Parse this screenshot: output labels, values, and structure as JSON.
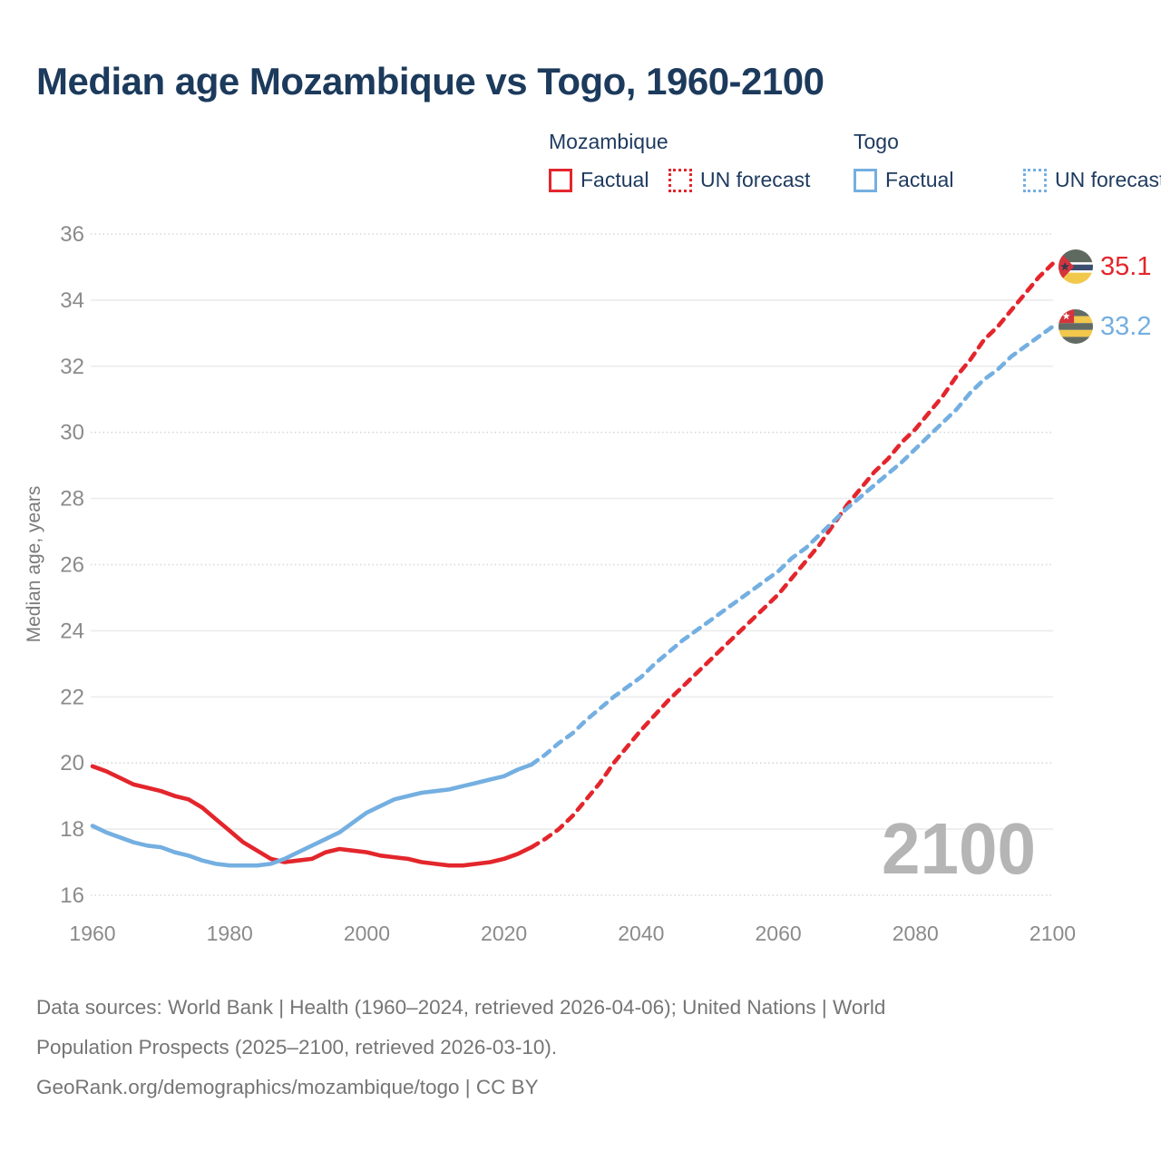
{
  "title": "Median age Mozambique vs Togo, 1960-2100",
  "legend": {
    "groups": [
      {
        "name": "Mozambique",
        "color": "#e3262c",
        "items": [
          {
            "label": "Factual",
            "line_style": "solid"
          },
          {
            "label": "UN forecast",
            "line_style": "dotted"
          }
        ]
      },
      {
        "name": "Togo",
        "color": "#74afe1",
        "items": [
          {
            "label": "Factual",
            "line_style": "solid"
          },
          {
            "label": "UN forecast",
            "line_style": "dotted"
          }
        ]
      }
    ]
  },
  "end_labels": [
    {
      "series": "Mozambique",
      "value": "35.1",
      "flag": "mozambique-flag"
    },
    {
      "series": "Togo",
      "value": "33.2",
      "flag": "togo-flag"
    }
  ],
  "watermark": "2100",
  "footer": {
    "lines": [
      "Data sources: World Bank | Health (1960–2024, retrieved 2026-04-06); United Nations | World",
      "Population Prospects (2025–2100, retrieved 2026-03-10).",
      "GeoRank.org/demographics/mozambique/togo | CC BY"
    ]
  },
  "colors": {
    "mozambique": "#e3262c",
    "togo": "#74afe1",
    "title_text": "#1c3a5c",
    "axis_text": "#8b8b8b",
    "footer_text": "#757575",
    "watermark": "#b5b5b5",
    "gridline_solid": "#ececec",
    "gridline_dotted": "#d8d8d8"
  },
  "chart_data": {
    "type": "line",
    "title": "Median age Mozambique vs Togo, 1960-2100",
    "xlabel": "",
    "ylabel": "Median age, years",
    "xlim": [
      1960,
      2100
    ],
    "ylim": [
      16,
      36
    ],
    "x_ticks": [
      1960,
      1980,
      2000,
      2020,
      2040,
      2060,
      2080,
      2100
    ],
    "y_ticks": [
      16,
      18,
      20,
      22,
      24,
      26,
      28,
      30,
      32,
      34,
      36
    ],
    "grid": "horizontal",
    "legend_position": "top-right",
    "series": [
      {
        "name": "Mozambique Factual",
        "color": "#e3262c",
        "style": "solid",
        "points": [
          [
            1960,
            19.9
          ],
          [
            1962,
            19.75
          ],
          [
            1964,
            19.55
          ],
          [
            1966,
            19.35
          ],
          [
            1968,
            19.25
          ],
          [
            1970,
            19.15
          ],
          [
            1972,
            19.0
          ],
          [
            1974,
            18.9
          ],
          [
            1976,
            18.65
          ],
          [
            1978,
            18.3
          ],
          [
            1980,
            17.95
          ],
          [
            1982,
            17.6
          ],
          [
            1984,
            17.35
          ],
          [
            1986,
            17.1
          ],
          [
            1988,
            17.0
          ],
          [
            1990,
            17.05
          ],
          [
            1992,
            17.1
          ],
          [
            1994,
            17.3
          ],
          [
            1996,
            17.4
          ],
          [
            1998,
            17.35
          ],
          [
            2000,
            17.3
          ],
          [
            2002,
            17.2
          ],
          [
            2004,
            17.15
          ],
          [
            2006,
            17.1
          ],
          [
            2008,
            17.0
          ],
          [
            2010,
            16.95
          ],
          [
            2012,
            16.9
          ],
          [
            2014,
            16.9
          ],
          [
            2016,
            16.95
          ],
          [
            2018,
            17.0
          ],
          [
            2020,
            17.1
          ],
          [
            2022,
            17.25
          ],
          [
            2024,
            17.45
          ]
        ]
      },
      {
        "name": "Mozambique UN forecast",
        "color": "#e3262c",
        "style": "dashed",
        "points": [
          [
            2024,
            17.45
          ],
          [
            2026,
            17.7
          ],
          [
            2028,
            18.0
          ],
          [
            2030,
            18.4
          ],
          [
            2032,
            18.9
          ],
          [
            2034,
            19.4
          ],
          [
            2036,
            20.0
          ],
          [
            2038,
            20.5
          ],
          [
            2040,
            21.0
          ],
          [
            2042,
            21.45
          ],
          [
            2044,
            21.9
          ],
          [
            2046,
            22.3
          ],
          [
            2048,
            22.7
          ],
          [
            2050,
            23.1
          ],
          [
            2052,
            23.5
          ],
          [
            2054,
            23.9
          ],
          [
            2056,
            24.3
          ],
          [
            2058,
            24.7
          ],
          [
            2060,
            25.1
          ],
          [
            2062,
            25.6
          ],
          [
            2064,
            26.1
          ],
          [
            2066,
            26.6
          ],
          [
            2068,
            27.2
          ],
          [
            2070,
            27.8
          ],
          [
            2072,
            28.3
          ],
          [
            2074,
            28.8
          ],
          [
            2076,
            29.2
          ],
          [
            2078,
            29.7
          ],
          [
            2080,
            30.1
          ],
          [
            2082,
            30.6
          ],
          [
            2084,
            31.1
          ],
          [
            2086,
            31.7
          ],
          [
            2088,
            32.2
          ],
          [
            2090,
            32.8
          ],
          [
            2092,
            33.2
          ],
          [
            2094,
            33.7
          ],
          [
            2096,
            34.2
          ],
          [
            2098,
            34.7
          ],
          [
            2100,
            35.1
          ]
        ]
      },
      {
        "name": "Togo Factual",
        "color": "#74afe1",
        "style": "solid",
        "points": [
          [
            1960,
            18.1
          ],
          [
            1962,
            17.9
          ],
          [
            1964,
            17.75
          ],
          [
            1966,
            17.6
          ],
          [
            1968,
            17.5
          ],
          [
            1970,
            17.45
          ],
          [
            1972,
            17.3
          ],
          [
            1974,
            17.2
          ],
          [
            1976,
            17.05
          ],
          [
            1978,
            16.95
          ],
          [
            1980,
            16.9
          ],
          [
            1982,
            16.9
          ],
          [
            1984,
            16.9
          ],
          [
            1986,
            16.95
          ],
          [
            1988,
            17.1
          ],
          [
            1990,
            17.3
          ],
          [
            1992,
            17.5
          ],
          [
            1994,
            17.7
          ],
          [
            1996,
            17.9
          ],
          [
            1998,
            18.2
          ],
          [
            2000,
            18.5
          ],
          [
            2002,
            18.7
          ],
          [
            2004,
            18.9
          ],
          [
            2006,
            19.0
          ],
          [
            2008,
            19.1
          ],
          [
            2010,
            19.15
          ],
          [
            2012,
            19.2
          ],
          [
            2014,
            19.3
          ],
          [
            2016,
            19.4
          ],
          [
            2018,
            19.5
          ],
          [
            2020,
            19.6
          ],
          [
            2022,
            19.8
          ],
          [
            2024,
            19.95
          ]
        ]
      },
      {
        "name": "Togo UN forecast",
        "color": "#74afe1",
        "style": "dashed",
        "points": [
          [
            2024,
            19.95
          ],
          [
            2026,
            20.25
          ],
          [
            2028,
            20.6
          ],
          [
            2030,
            20.9
          ],
          [
            2032,
            21.3
          ],
          [
            2034,
            21.65
          ],
          [
            2036,
            22.0
          ],
          [
            2038,
            22.3
          ],
          [
            2040,
            22.6
          ],
          [
            2042,
            23.0
          ],
          [
            2044,
            23.35
          ],
          [
            2046,
            23.7
          ],
          [
            2048,
            24.0
          ],
          [
            2050,
            24.3
          ],
          [
            2052,
            24.6
          ],
          [
            2054,
            24.9
          ],
          [
            2056,
            25.2
          ],
          [
            2058,
            25.5
          ],
          [
            2060,
            25.8
          ],
          [
            2062,
            26.2
          ],
          [
            2064,
            26.5
          ],
          [
            2066,
            26.9
          ],
          [
            2068,
            27.3
          ],
          [
            2070,
            27.7
          ],
          [
            2072,
            28.05
          ],
          [
            2074,
            28.4
          ],
          [
            2076,
            28.75
          ],
          [
            2078,
            29.1
          ],
          [
            2080,
            29.5
          ],
          [
            2082,
            29.9
          ],
          [
            2084,
            30.3
          ],
          [
            2086,
            30.7
          ],
          [
            2088,
            31.2
          ],
          [
            2090,
            31.6
          ],
          [
            2092,
            31.9
          ],
          [
            2094,
            32.3
          ],
          [
            2096,
            32.6
          ],
          [
            2098,
            32.9
          ],
          [
            2100,
            33.2
          ]
        ]
      }
    ],
    "end_values": {
      "mozambique_2100": 35.1,
      "togo_2100": 33.2
    },
    "annotations": [
      {
        "text": "2100",
        "role": "watermark"
      }
    ]
  }
}
